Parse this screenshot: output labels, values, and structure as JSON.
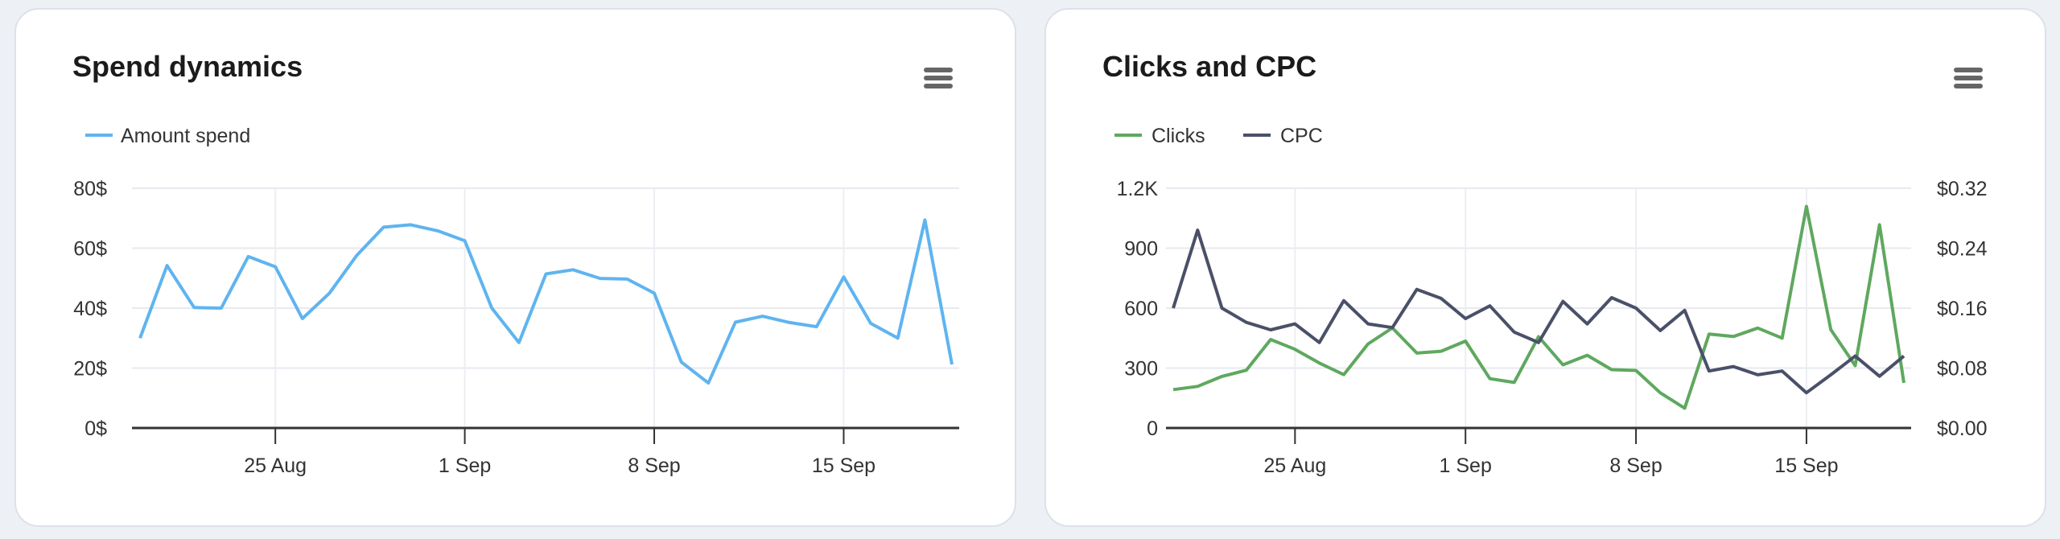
{
  "chart_data": [
    {
      "type": "line",
      "title": "Spend dynamics",
      "x": [
        "2024-08-20",
        "2024-08-21",
        "2024-08-22",
        "2024-08-23",
        "2024-08-24",
        "2024-08-25",
        "2024-08-26",
        "2024-08-27",
        "2024-08-28",
        "2024-08-29",
        "2024-08-30",
        "2024-08-31",
        "2024-09-01",
        "2024-09-02",
        "2024-09-03",
        "2024-09-04",
        "2024-09-05",
        "2024-09-06",
        "2024-09-07",
        "2024-09-08",
        "2024-09-09",
        "2024-09-10",
        "2024-09-11",
        "2024-09-12",
        "2024-09-13",
        "2024-09-14",
        "2024-09-15",
        "2024-09-16",
        "2024-09-17",
        "2024-09-18",
        "2024-09-19"
      ],
      "x_ticks": [
        "25 Aug",
        "1 Sep",
        "8 Sep",
        "15 Sep"
      ],
      "y_ticks": [
        "0$",
        "20$",
        "40$",
        "60$",
        "80$"
      ],
      "ylim": [
        0,
        80
      ],
      "grid": true,
      "legend": "top-left",
      "series": [
        {
          "name": "Amount spend",
          "color": "#5fb4ef",
          "axis": "left",
          "values": [
            30,
            54.2,
            40.2,
            40,
            57.2,
            53.8,
            36.5,
            45,
            57.5,
            67,
            67.8,
            65.8,
            62.5,
            40,
            28.5,
            51.4,
            52.8,
            49.9,
            49.7,
            45,
            22,
            15,
            35.3,
            37.3,
            35.2,
            33.8,
            50.4,
            34.9,
            30,
            69.4,
            21.2
          ]
        }
      ]
    },
    {
      "type": "line",
      "title": "Clicks and CPC",
      "x": [
        "2024-08-20",
        "2024-08-21",
        "2024-08-22",
        "2024-08-23",
        "2024-08-24",
        "2024-08-25",
        "2024-08-26",
        "2024-08-27",
        "2024-08-28",
        "2024-08-29",
        "2024-08-30",
        "2024-08-31",
        "2024-09-01",
        "2024-09-02",
        "2024-09-03",
        "2024-09-04",
        "2024-09-05",
        "2024-09-06",
        "2024-09-07",
        "2024-09-08",
        "2024-09-09",
        "2024-09-10",
        "2024-09-11",
        "2024-09-12",
        "2024-09-13",
        "2024-09-14",
        "2024-09-15",
        "2024-09-16",
        "2024-09-17",
        "2024-09-18",
        "2024-09-19"
      ],
      "x_ticks": [
        "25 Aug",
        "1 Sep",
        "8 Sep",
        "15 Sep"
      ],
      "y_ticks": [
        "0",
        "300",
        "600",
        "900",
        "1.2K"
      ],
      "ylim": [
        0,
        1200
      ],
      "y2_ticks": [
        "$0.00",
        "$0.08",
        "$0.16",
        "$0.24",
        "$0.32"
      ],
      "y2lim": [
        0,
        0.32
      ],
      "grid": true,
      "legend": "top-left",
      "series": [
        {
          "name": "Clicks",
          "color": "#5fa85f",
          "axis": "left",
          "values": [
            192,
            208,
            258,
            289,
            443,
            394,
            325,
            267,
            421,
            501,
            375,
            384,
            435,
            247,
            228,
            457,
            316,
            364,
            292,
            288,
            176,
            99,
            470,
            458,
            500,
            450,
            1109,
            492,
            312,
            1017,
            226
          ]
        },
        {
          "name": "CPC",
          "color": "#4a5068",
          "axis": "right",
          "values": [
            0.16,
            0.264,
            0.16,
            0.141,
            0.131,
            0.139,
            0.114,
            0.17,
            0.139,
            0.134,
            0.185,
            0.173,
            0.146,
            0.163,
            0.128,
            0.114,
            0.169,
            0.139,
            0.174,
            0.16,
            0.13,
            0.157,
            0.076,
            0.082,
            0.071,
            0.076,
            0.047,
            0.071,
            0.096,
            0.069,
            0.096
          ]
        }
      ]
    }
  ]
}
